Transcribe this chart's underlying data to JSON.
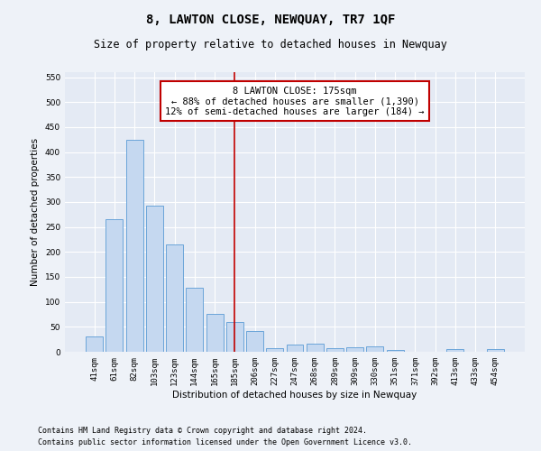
{
  "title": "8, LAWTON CLOSE, NEWQUAY, TR7 1QF",
  "subtitle": "Size of property relative to detached houses in Newquay",
  "xlabel": "Distribution of detached houses by size in Newquay",
  "ylabel": "Number of detached properties",
  "categories": [
    "41sqm",
    "61sqm",
    "82sqm",
    "103sqm",
    "123sqm",
    "144sqm",
    "165sqm",
    "185sqm",
    "206sqm",
    "227sqm",
    "247sqm",
    "268sqm",
    "289sqm",
    "309sqm",
    "330sqm",
    "351sqm",
    "371sqm",
    "392sqm",
    "413sqm",
    "433sqm",
    "454sqm"
  ],
  "values": [
    30,
    265,
    425,
    293,
    215,
    128,
    76,
    60,
    42,
    8,
    15,
    16,
    8,
    9,
    10,
    3,
    0,
    0,
    5,
    0,
    5
  ],
  "bar_color": "#c5d8f0",
  "bar_edge_color": "#5b9bd5",
  "vline_x": 7,
  "vline_color": "#c00000",
  "annotation_text": "8 LAWTON CLOSE: 175sqm\n← 88% of detached houses are smaller (1,390)\n12% of semi-detached houses are larger (184) →",
  "annotation_box_color": "#ffffff",
  "annotation_box_edge_color": "#c00000",
  "ylim": [
    0,
    560
  ],
  "yticks": [
    0,
    50,
    100,
    150,
    200,
    250,
    300,
    350,
    400,
    450,
    500,
    550
  ],
  "footer_line1": "Contains HM Land Registry data © Crown copyright and database right 2024.",
  "footer_line2": "Contains public sector information licensed under the Open Government Licence v3.0.",
  "bg_color": "#eef2f8",
  "plot_bg_color": "#e4eaf4",
  "grid_color": "#ffffff",
  "title_fontsize": 10,
  "subtitle_fontsize": 8.5,
  "axis_label_fontsize": 7.5,
  "tick_fontsize": 6.5,
  "annotation_fontsize": 7.5,
  "footer_fontsize": 6
}
